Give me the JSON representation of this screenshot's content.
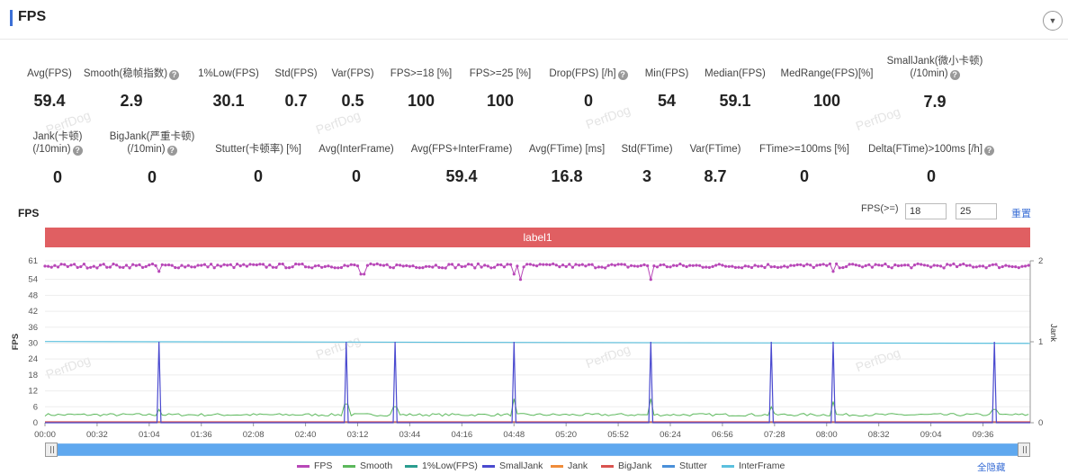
{
  "header": {
    "title": "FPS"
  },
  "metrics_row1": [
    {
      "label": "Avg(FPS)",
      "value": "59.4",
      "help": false
    },
    {
      "label": "Smooth(稳帧指数)",
      "value": "2.9",
      "help": true
    },
    {
      "label": "1%Low(FPS)",
      "value": "30.1",
      "help": false
    },
    {
      "label": "Std(FPS)",
      "value": "0.7",
      "help": false
    },
    {
      "label": "Var(FPS)",
      "value": "0.5",
      "help": false
    },
    {
      "label": "FPS>=18 [%]",
      "value": "100",
      "help": false
    },
    {
      "label": "FPS>=25 [%]",
      "value": "100",
      "help": false
    },
    {
      "label": "Drop(FPS) [/h]",
      "value": "0",
      "help": true
    },
    {
      "label": "Min(FPS)",
      "value": "54",
      "help": false
    },
    {
      "label": "Median(FPS)",
      "value": "59.1",
      "help": false
    },
    {
      "label": "MedRange(FPS)[%]",
      "value": "100",
      "help": false
    },
    {
      "label": "SmallJank(微小卡顿)",
      "label2": "(/10min)",
      "value": "7.9",
      "help": true
    }
  ],
  "metrics_row2": [
    {
      "label": "Jank(卡顿)",
      "label2": "(/10min)",
      "value": "0",
      "help": true
    },
    {
      "label": "BigJank(严重卡顿)",
      "label2": "(/10min)",
      "value": "0",
      "help": true
    },
    {
      "label": "Stutter(卡顿率) [%]",
      "value": "0",
      "help": false
    },
    {
      "label": "Avg(InterFrame)",
      "value": "0",
      "help": false
    },
    {
      "label": "Avg(FPS+InterFrame)",
      "value": "59.4",
      "help": false
    },
    {
      "label": "Avg(FTime) [ms]",
      "value": "16.8",
      "help": false
    },
    {
      "label": "Std(FTime)",
      "value": "3",
      "help": false
    },
    {
      "label": "Var(FTime)",
      "value": "8.7",
      "help": false
    },
    {
      "label": "FTime>=100ms [%]",
      "value": "0",
      "help": false
    },
    {
      "label": "Delta(FTime)>100ms [/h]",
      "value": "0",
      "help": true
    }
  ],
  "watermark": "PerfDog",
  "chart_section": {
    "title": "FPS",
    "fps_threshold_label": "FPS(>=)",
    "threshold_1": "18",
    "threshold_2": "25",
    "reset_label": "重置",
    "label_bar": "label1",
    "hide_all_label": "全隐藏"
  },
  "chart_data": {
    "type": "line",
    "ylabel": "FPS",
    "y2label": "Jank",
    "ylim": [
      0,
      61
    ],
    "y_ticks": [
      0,
      6,
      12,
      18,
      24,
      30,
      36,
      42,
      48,
      54,
      61
    ],
    "y2lim": [
      0,
      2
    ],
    "y2_ticks": [
      0,
      1,
      2
    ],
    "x_tick_labels": [
      "00:00",
      "00:32",
      "01:04",
      "01:36",
      "02:08",
      "02:40",
      "03:12",
      "03:44",
      "04:16",
      "04:48",
      "05:20",
      "05:52",
      "06:24",
      "06:56",
      "07:28",
      "08:00",
      "08:32",
      "09:04",
      "09:36"
    ],
    "x_range_seconds": [
      0,
      605
    ],
    "legend": [
      {
        "name": "FPS",
        "color": "#b848b8"
      },
      {
        "name": "Smooth",
        "color": "#5cb85c"
      },
      {
        "name": "1%Low(FPS)",
        "color": "#2a9d8f"
      },
      {
        "name": "SmallJank",
        "color": "#4a4acf"
      },
      {
        "name": "Jank",
        "color": "#f08c3a"
      },
      {
        "name": "BigJank",
        "color": "#d9534f"
      },
      {
        "name": "Stutter",
        "color": "#4a90d9"
      },
      {
        "name": "InterFrame",
        "color": "#5bc0de"
      }
    ],
    "series": [
      {
        "name": "FPS",
        "typical_value": 59.1,
        "min_value": 54,
        "dips": [
          [
            70,
            57
          ],
          [
            195,
            56
          ],
          [
            288,
            56
          ],
          [
            292,
            54
          ],
          [
            372,
            54
          ],
          [
            484,
            57
          ]
        ]
      },
      {
        "name": "Smooth",
        "typical_value": 3,
        "spikes": [
          [
            70,
            5
          ],
          [
            185,
            7
          ],
          [
            215,
            6
          ],
          [
            288,
            9
          ],
          [
            372,
            9
          ],
          [
            446,
            6
          ],
          [
            484,
            8
          ],
          [
            583,
            5
          ]
        ]
      },
      {
        "name": "1%Low(FPS)",
        "start_value": 30.6,
        "end_value": 29.9
      },
      {
        "name": "SmallJank",
        "axis": "right",
        "events_seconds": [
          70,
          185,
          215,
          288,
          372,
          446,
          484,
          583
        ]
      },
      {
        "name": "Jank",
        "axis": "right",
        "value": 0
      },
      {
        "name": "BigJank",
        "axis": "right",
        "value": 0
      },
      {
        "name": "Stutter",
        "value": 0
      },
      {
        "name": "InterFrame",
        "value": 0
      }
    ]
  }
}
